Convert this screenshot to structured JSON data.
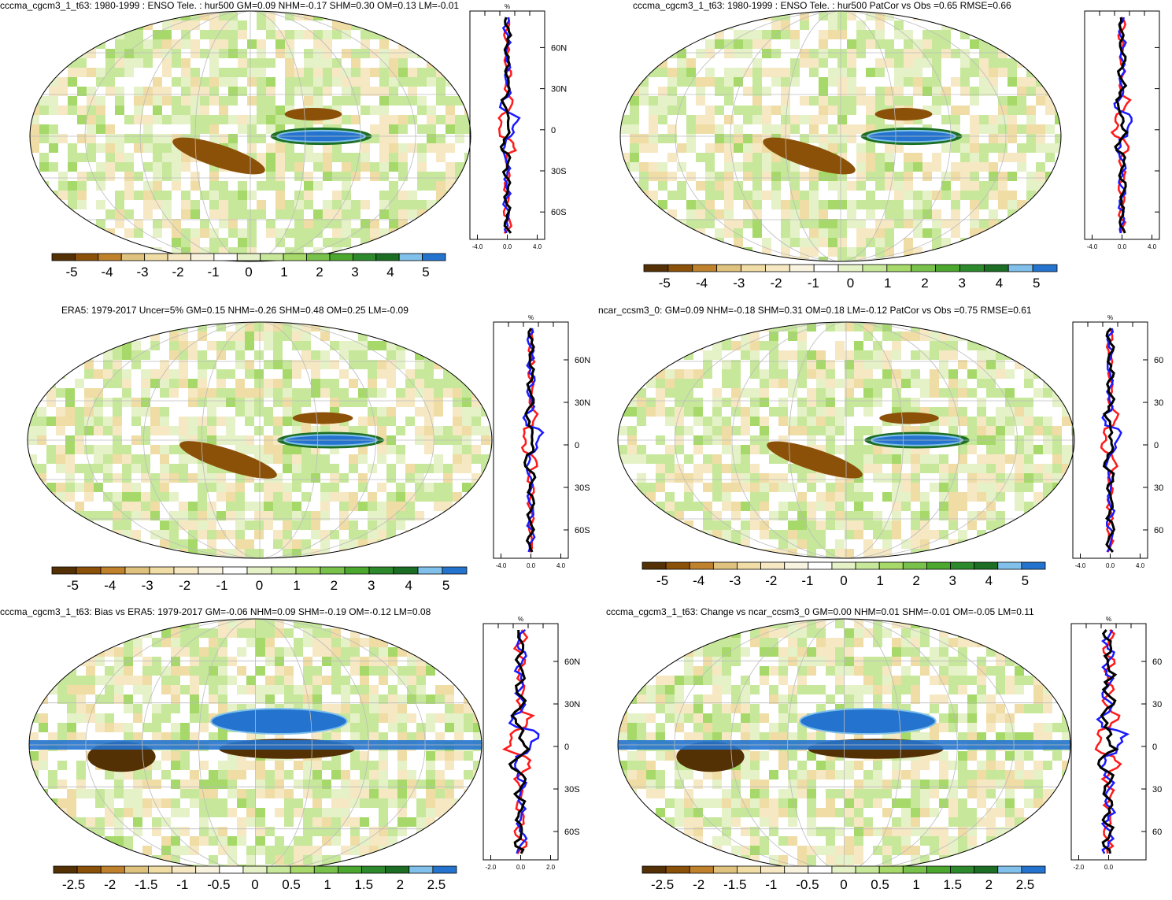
{
  "colors": {
    "level_colors_5": [
      "#543005",
      "#8c5109",
      "#bf812c",
      "#dfc27d",
      "#f0dca5",
      "#f6e8c3",
      "#f8f3df",
      "#ffffff",
      "#e5f1c7",
      "#c7e89b",
      "#a6d96a",
      "#78c24b",
      "#4ca72e",
      "#2d8a2c",
      "#1b6e23",
      "#80c0ea",
      "#2474cf"
    ],
    "series": {
      "red": "#ff1a1a",
      "blue": "#1a1aff",
      "black": "#000000"
    }
  },
  "panels": [
    {
      "title": "cccma_cgcm3_1_t63: 1980-1999 : ENSO Tele. : hur500 GM=0.09 NHM=-0.17 SHM=0.30 OM=0.13 LM=-0.01",
      "colorbar_labels": [
        "-5",
        "-4",
        "-3",
        "-2",
        "-1",
        "0",
        "1",
        "2",
        "3",
        "4",
        "5"
      ],
      "profile": {
        "unit": "%",
        "lat_labels": [
          "60N",
          "30N",
          "0",
          "30S",
          "60S"
        ],
        "x_ticks": [
          "-4.0",
          "0.0",
          "4.0"
        ]
      }
    },
    {
      "title": "cccma_cgcm3_1_t63: 1980-1999 : ENSO Tele. : hur500 PatCor vs Obs =0.65 RMSE=0.66",
      "colorbar_labels": [
        "-5",
        "-4",
        "-3",
        "-2",
        "-1",
        "0",
        "1",
        "2",
        "3",
        "4",
        "5"
      ],
      "profile": {
        "unit": "",
        "lat_labels": [],
        "x_ticks": [
          "-4.0",
          "0.0",
          "4.0"
        ]
      }
    },
    {
      "title": "ERA5: 1979-2017 Uncer=5% GM=0.15 NHM=-0.26 SHM=0.48 OM=0.25 LM=-0.09",
      "colorbar_labels": [
        "-5",
        "-4",
        "-3",
        "-2",
        "-1",
        "0",
        "1",
        "2",
        "3",
        "4",
        "5"
      ],
      "profile": {
        "unit": "%",
        "lat_labels": [
          "60N",
          "30N",
          "0",
          "30S",
          "60S"
        ],
        "x_ticks": [
          "-4.0",
          "0.0",
          "4.0"
        ]
      }
    },
    {
      "title": "ncar_ccsm3_0: GM=0.09 NHM=-0.18 SHM=0.31 OM=0.18 LM=-0.12 PatCor vs Obs =0.75 RMSE=0.61",
      "colorbar_labels": [
        "-5",
        "-4",
        "-3",
        "-2",
        "-1",
        "0",
        "1",
        "2",
        "3",
        "4",
        "5"
      ],
      "profile": {
        "unit": "%",
        "lat_labels": [
          "60",
          "30",
          "0",
          "30",
          "60"
        ],
        "x_ticks": [
          "-4.0",
          "0.0",
          "4.0"
        ]
      }
    },
    {
      "title": "cccma_cgcm3_1_t63: Bias vs ERA5: 1979-2017 GM=-0.06 NHM=0.09 SHM=-0.19 OM=-0.12 LM=0.08",
      "colorbar_labels": [
        "-2.5",
        "-2",
        "-1.5",
        "-1",
        "-0.5",
        "0",
        "0.5",
        "1",
        "1.5",
        "2",
        "2.5"
      ],
      "profile": {
        "unit": "%",
        "lat_labels": [
          "60N",
          "30N",
          "0",
          "30S",
          "60S"
        ],
        "x_ticks": [
          "-2.0",
          "0.0",
          "2.0"
        ]
      }
    },
    {
      "title": "cccma_cgcm3_1_t63: Change vs ncar_ccsm3_0 GM=0.00 NHM=0.01 SHM=-0.01 OM=-0.05 LM=0.11",
      "colorbar_labels": [
        "-2.5",
        "-2",
        "-1.5",
        "-1",
        "-0.5",
        "0",
        "0.5",
        "1",
        "1.5",
        "2",
        "2.5"
      ],
      "profile": {
        "unit": "%",
        "lat_labels": [
          "60",
          "30",
          "0",
          "30",
          "60"
        ],
        "x_ticks": [
          "-2.0",
          "0.0"
        ]
      }
    }
  ],
  "chart_data": [
    {
      "type": "heatmap",
      "title": "cccma_cgcm3_1_t63: 1980-1999 : ENSO Tele. : hur500 GM=0.09 NHM=-0.17 SHM=0.30 OM=0.13 LM=-0.01",
      "projection": "robinson",
      "colorbar": {
        "min": -5,
        "max": 5,
        "step": 1
      },
      "features": [
        {
          "region": "central-eastern equatorial Pacific",
          "sign": "positive",
          "level": 5
        },
        {
          "region": "western Pacific SPCZ band",
          "sign": "negative",
          "level": -4
        }
      ]
    },
    {
      "type": "heatmap",
      "title": "cccma_cgcm3_1_t63: 1980-1999 : ENSO Tele. : hur500 PatCor vs Obs =0.65 RMSE=0.66",
      "projection": "robinson",
      "colorbar": {
        "min": -5,
        "max": 5,
        "step": 1
      },
      "pattern_correlation": 0.65,
      "rmse": 0.66
    },
    {
      "type": "heatmap",
      "title": "ERA5: 1979-2017 Uncer=5% GM=0.15 NHM=-0.26 SHM=0.48 OM=0.25 LM=-0.09",
      "projection": "robinson",
      "colorbar": {
        "min": -5,
        "max": 5,
        "step": 1
      },
      "uncertainty_percent": 5
    },
    {
      "type": "heatmap",
      "title": "ncar_ccsm3_0: GM=0.09 NHM=-0.18 SHM=0.31 OM=0.18 LM=-0.12 PatCor vs Obs =0.75 RMSE=0.61",
      "projection": "robinson",
      "colorbar": {
        "min": -5,
        "max": 5,
        "step": 1
      },
      "pattern_correlation": 0.75,
      "rmse": 0.61
    },
    {
      "type": "heatmap",
      "title": "cccma_cgcm3_1_t63: Bias vs ERA5: 1979-2017 GM=-0.06 NHM=0.09 SHM=-0.19 OM=-0.12 LM=0.08",
      "projection": "robinson",
      "colorbar": {
        "min": -2.5,
        "max": 2.5,
        "step": 0.5
      }
    },
    {
      "type": "heatmap",
      "title": "cccma_cgcm3_1_t63: Change vs ncar_ccsm3_0 GM=0.00 NHM=0.01 SHM=-0.01 OM=-0.05 LM=0.11",
      "projection": "robinson",
      "colorbar": {
        "min": -2.5,
        "max": 2.5,
        "step": 0.5
      }
    }
  ]
}
